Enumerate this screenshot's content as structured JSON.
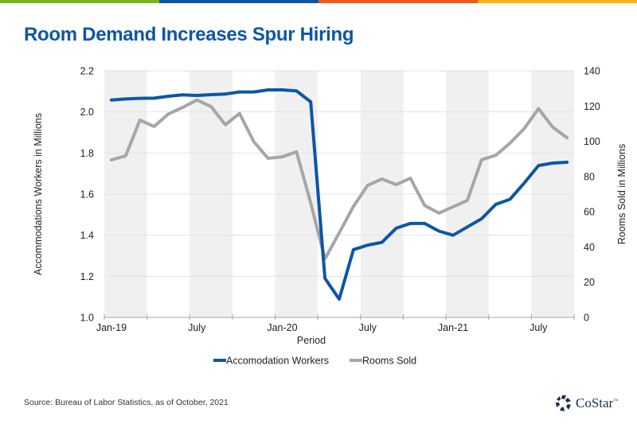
{
  "top_bar_colors": [
    "#7ab51d",
    "#0d56a6",
    "#ee5a1b",
    "#f7b418"
  ],
  "title": "Room Demand Increases Spur Hiring",
  "source": "Source: Bureau of Labor Statistics, as of October, 2021",
  "logo": {
    "text": "CoStar",
    "tm": "™",
    "color": "#1b2d52"
  },
  "chart_data": {
    "type": "line",
    "title": "Room Demand Increases Spur Hiring",
    "xlabel": "Period",
    "ylabel_left": "Accommodations Workers in Millions",
    "ylabel_right": "Rooms Sold in Millions",
    "ylim_left": [
      1.0,
      2.2
    ],
    "ylim_right": [
      0,
      140
    ],
    "yticks_left": [
      "1.0",
      "1.2",
      "1.4",
      "1.6",
      "1.8",
      "2.0",
      "2.2"
    ],
    "yticks_right": [
      "0",
      "20",
      "40",
      "60",
      "80",
      "100",
      "120",
      "140"
    ],
    "x_tick_labels": [
      "Jan-19",
      "July",
      "Jan-20",
      "July",
      "Jan-21",
      "July"
    ],
    "grid": true,
    "legend_position": "bottom",
    "x": [
      "Jan-19",
      "Feb-19",
      "Mar-19",
      "Apr-19",
      "May-19",
      "Jun-19",
      "Jul-19",
      "Aug-19",
      "Sep-19",
      "Oct-19",
      "Nov-19",
      "Dec-19",
      "Jan-20",
      "Feb-20",
      "Mar-20",
      "Apr-20",
      "May-20",
      "Jun-20",
      "Jul-20",
      "Aug-20",
      "Sep-20",
      "Oct-20",
      "Nov-20",
      "Dec-20",
      "Jan-21",
      "Feb-21",
      "Mar-21",
      "Apr-21",
      "May-21",
      "Jun-21",
      "Jul-21",
      "Aug-21",
      "Sep-21"
    ],
    "series": [
      {
        "name": "Accomodation Workers",
        "axis": "left",
        "color": "#0d56a6",
        "values": [
          2.058,
          2.063,
          2.066,
          2.067,
          2.076,
          2.083,
          2.08,
          2.084,
          2.087,
          2.097,
          2.097,
          2.107,
          2.107,
          2.102,
          2.049,
          1.19,
          1.089,
          1.33,
          1.352,
          1.365,
          1.434,
          1.457,
          1.457,
          1.42,
          1.4,
          1.44,
          1.48,
          1.55,
          1.575,
          1.654,
          1.739,
          1.751,
          1.755
        ]
      },
      {
        "name": "Rooms Sold",
        "axis": "right",
        "color": "#a6a6a6",
        "values": [
          89.4,
          91.7,
          112,
          108.4,
          115.5,
          119.2,
          123.4,
          119.7,
          109.4,
          115.8,
          99.8,
          90.3,
          91.2,
          94,
          65,
          33.2,
          48,
          63,
          75,
          78.6,
          75.4,
          79,
          63.6,
          59.2,
          62.8,
          66.4,
          89.5,
          92.1,
          98.9,
          107.2,
          118.5,
          108,
          102
        ]
      }
    ]
  }
}
